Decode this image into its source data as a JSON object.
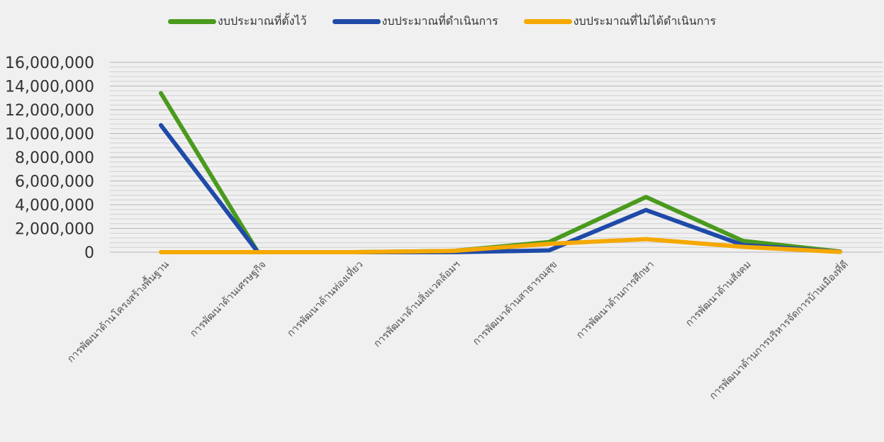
{
  "chart_data": {
    "type": "line",
    "categories": [
      "การพัฒนาด้านโครงสร้างพื้นฐาน",
      "การพัฒนาด้านเศรษฐกิจ",
      "การพัฒนาด้านท่องเที่ยว",
      "การพัฒนาด้านสิ่งแวดล้อมฯ",
      "การพัฒนาด้านสาธารณสุข",
      "การพัฒนาด้านการศึกษา",
      "การพัฒนาด้านสังคม",
      "การพัฒนาด้านการบริหารจัดการบ้านเมืองที่ดี"
    ],
    "series": [
      {
        "name": "งบประมาณที่ตั้งไว้",
        "color": "#4a9a1e",
        "values": [
          13400000,
          0,
          0,
          100000,
          850000,
          4650000,
          950000,
          50000
        ]
      },
      {
        "name": "งบประมาณที่ดำเนินการ",
        "color": "#1f4aa8",
        "values": [
          10700000,
          0,
          0,
          0,
          150000,
          3550000,
          600000,
          30000
        ]
      },
      {
        "name": "งบประมาณที่ไม่ได้ดำเนินการ",
        "color": "#f5a800",
        "values": [
          0,
          0,
          0,
          100000,
          700000,
          1100000,
          450000,
          20000
        ]
      }
    ],
    "ylim": [
      0,
      16000000
    ],
    "yticks": [
      0,
      2000000,
      4000000,
      6000000,
      8000000,
      10000000,
      12000000,
      14000000,
      16000000
    ],
    "ytick_labels": [
      "0",
      "2,000,000",
      "4,000,000",
      "6,000,000",
      "8,000,000",
      "10,000,000",
      "12,000,000",
      "14,000,000",
      "16,000,000"
    ],
    "grid": true,
    "legend_position": "top-center"
  }
}
